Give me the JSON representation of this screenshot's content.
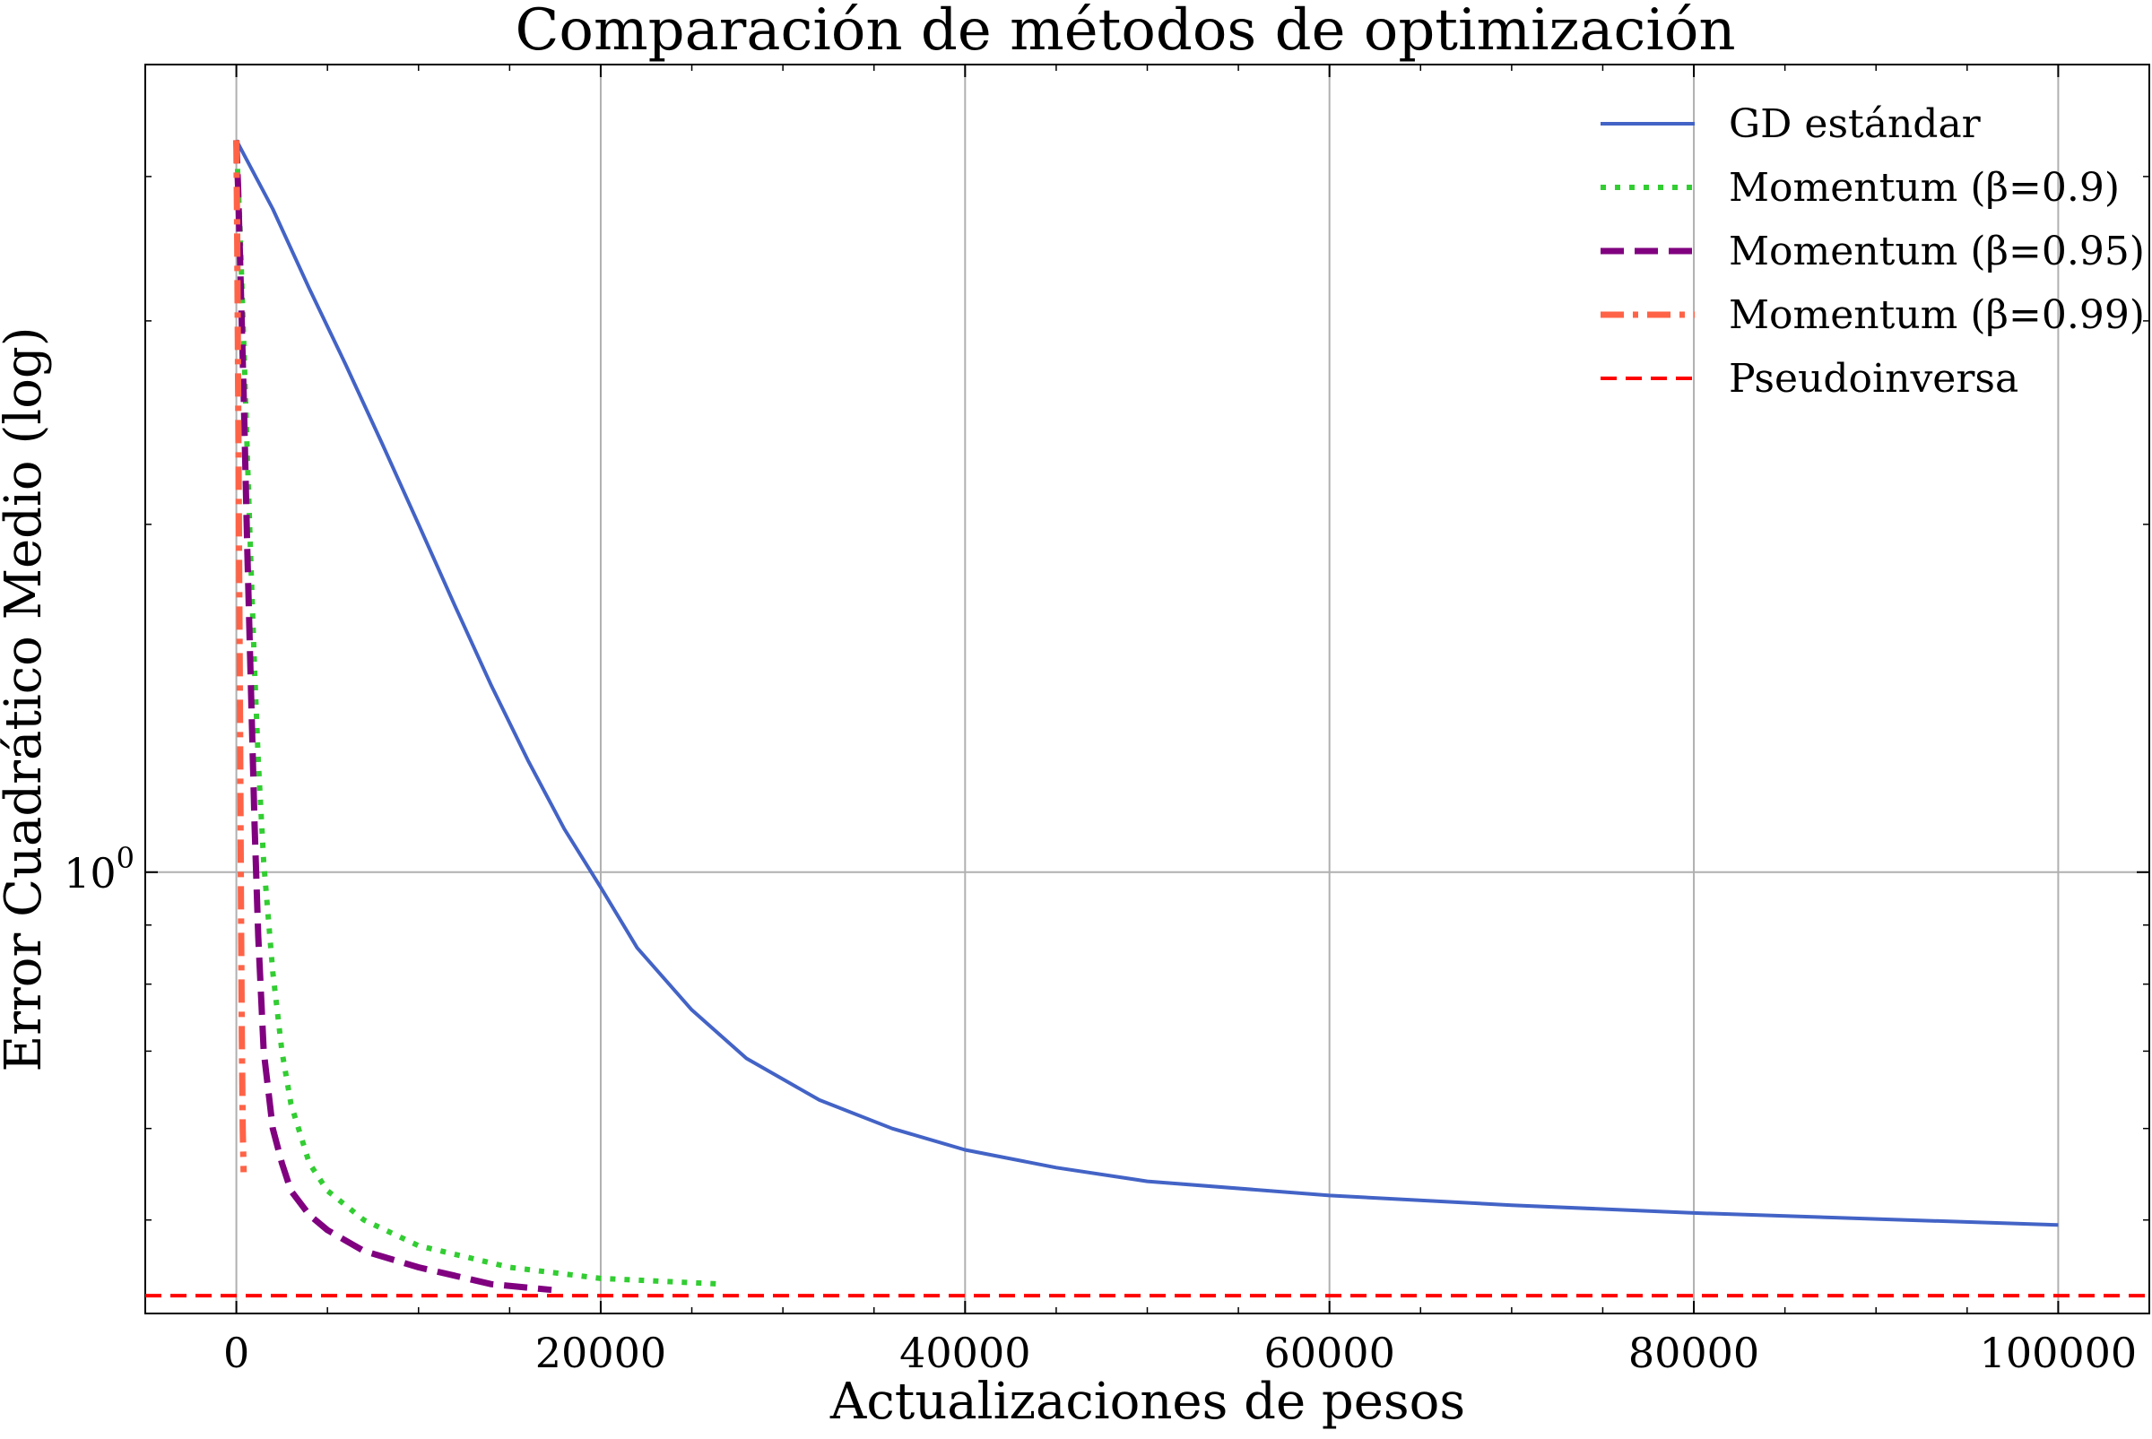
{
  "chart_data": {
    "type": "line",
    "title": "Comparación de métodos de optimización",
    "xlabel": "Actualizaciones de pesos",
    "ylabel": "Error Cuadrático Medio (log)",
    "xlim": [
      -5000,
      105000
    ],
    "ylim": [
      0.415,
      5.0
    ],
    "yscale": "log",
    "grid": true,
    "legend_position": "top-right",
    "x_ticks": [
      0,
      20000,
      40000,
      60000,
      80000,
      100000
    ],
    "x_tick_labels": [
      "0",
      "20000",
      "40000",
      "60000",
      "80000",
      "100000"
    ],
    "y_ticks": [
      1.0
    ],
    "y_tick_base": "10",
    "y_tick_exponent": "0",
    "series": [
      {
        "name": "GD estándar",
        "color": "#4363c6",
        "style": "solid",
        "x": [
          0,
          2000,
          4000,
          6000,
          8000,
          10000,
          12000,
          14000,
          16000,
          18000,
          20000,
          22000,
          25000,
          28000,
          32000,
          36000,
          40000,
          45000,
          50000,
          60000,
          70000,
          80000,
          90000,
          100000
        ],
        "y": [
          4.3,
          3.75,
          3.2,
          2.75,
          2.35,
          2.0,
          1.7,
          1.45,
          1.25,
          1.09,
          0.97,
          0.86,
          0.76,
          0.69,
          0.635,
          0.6,
          0.575,
          0.555,
          0.54,
          0.525,
          0.515,
          0.507,
          0.501,
          0.495
        ]
      },
      {
        "name": "Momentum (β=0.9)",
        "color": "#32cd32",
        "style": "dotted",
        "x": [
          0,
          200,
          400,
          600,
          800,
          1000,
          1200,
          1500,
          2000,
          2500,
          3000,
          4000,
          5000,
          7000,
          10000,
          15000,
          20000,
          26700
        ],
        "y": [
          4.3,
          3.6,
          2.9,
          2.3,
          1.85,
          1.5,
          1.25,
          1.02,
          0.82,
          0.7,
          0.63,
          0.56,
          0.53,
          0.5,
          0.475,
          0.455,
          0.445,
          0.44
        ]
      },
      {
        "name": "Momentum (β=0.95)",
        "color": "#800080",
        "style": "dashed",
        "x": [
          0,
          100,
          200,
          400,
          600,
          800,
          1000,
          1200,
          1500,
          2000,
          2500,
          3000,
          4000,
          5000,
          7000,
          10000,
          14000,
          17300
        ],
        "y": [
          4.3,
          3.9,
          3.4,
          2.6,
          1.9,
          1.45,
          1.1,
          0.88,
          0.7,
          0.6,
          0.56,
          0.53,
          0.505,
          0.49,
          0.47,
          0.455,
          0.44,
          0.435
        ]
      },
      {
        "name": "Momentum (β=0.99)",
        "color": "#ff6347",
        "style": "dashdot",
        "x": [
          0,
          50,
          100,
          150,
          200,
          250,
          300,
          350,
          400
        ],
        "y": [
          4.3,
          3.5,
          2.6,
          1.9,
          1.35,
          0.95,
          0.72,
          0.6,
          0.55
        ]
      },
      {
        "name": "Pseudoinversa",
        "color": "#ff0000",
        "style": "dashed-thin",
        "x": [
          -5000,
          105000
        ],
        "y": [
          0.43,
          0.43
        ]
      }
    ]
  }
}
